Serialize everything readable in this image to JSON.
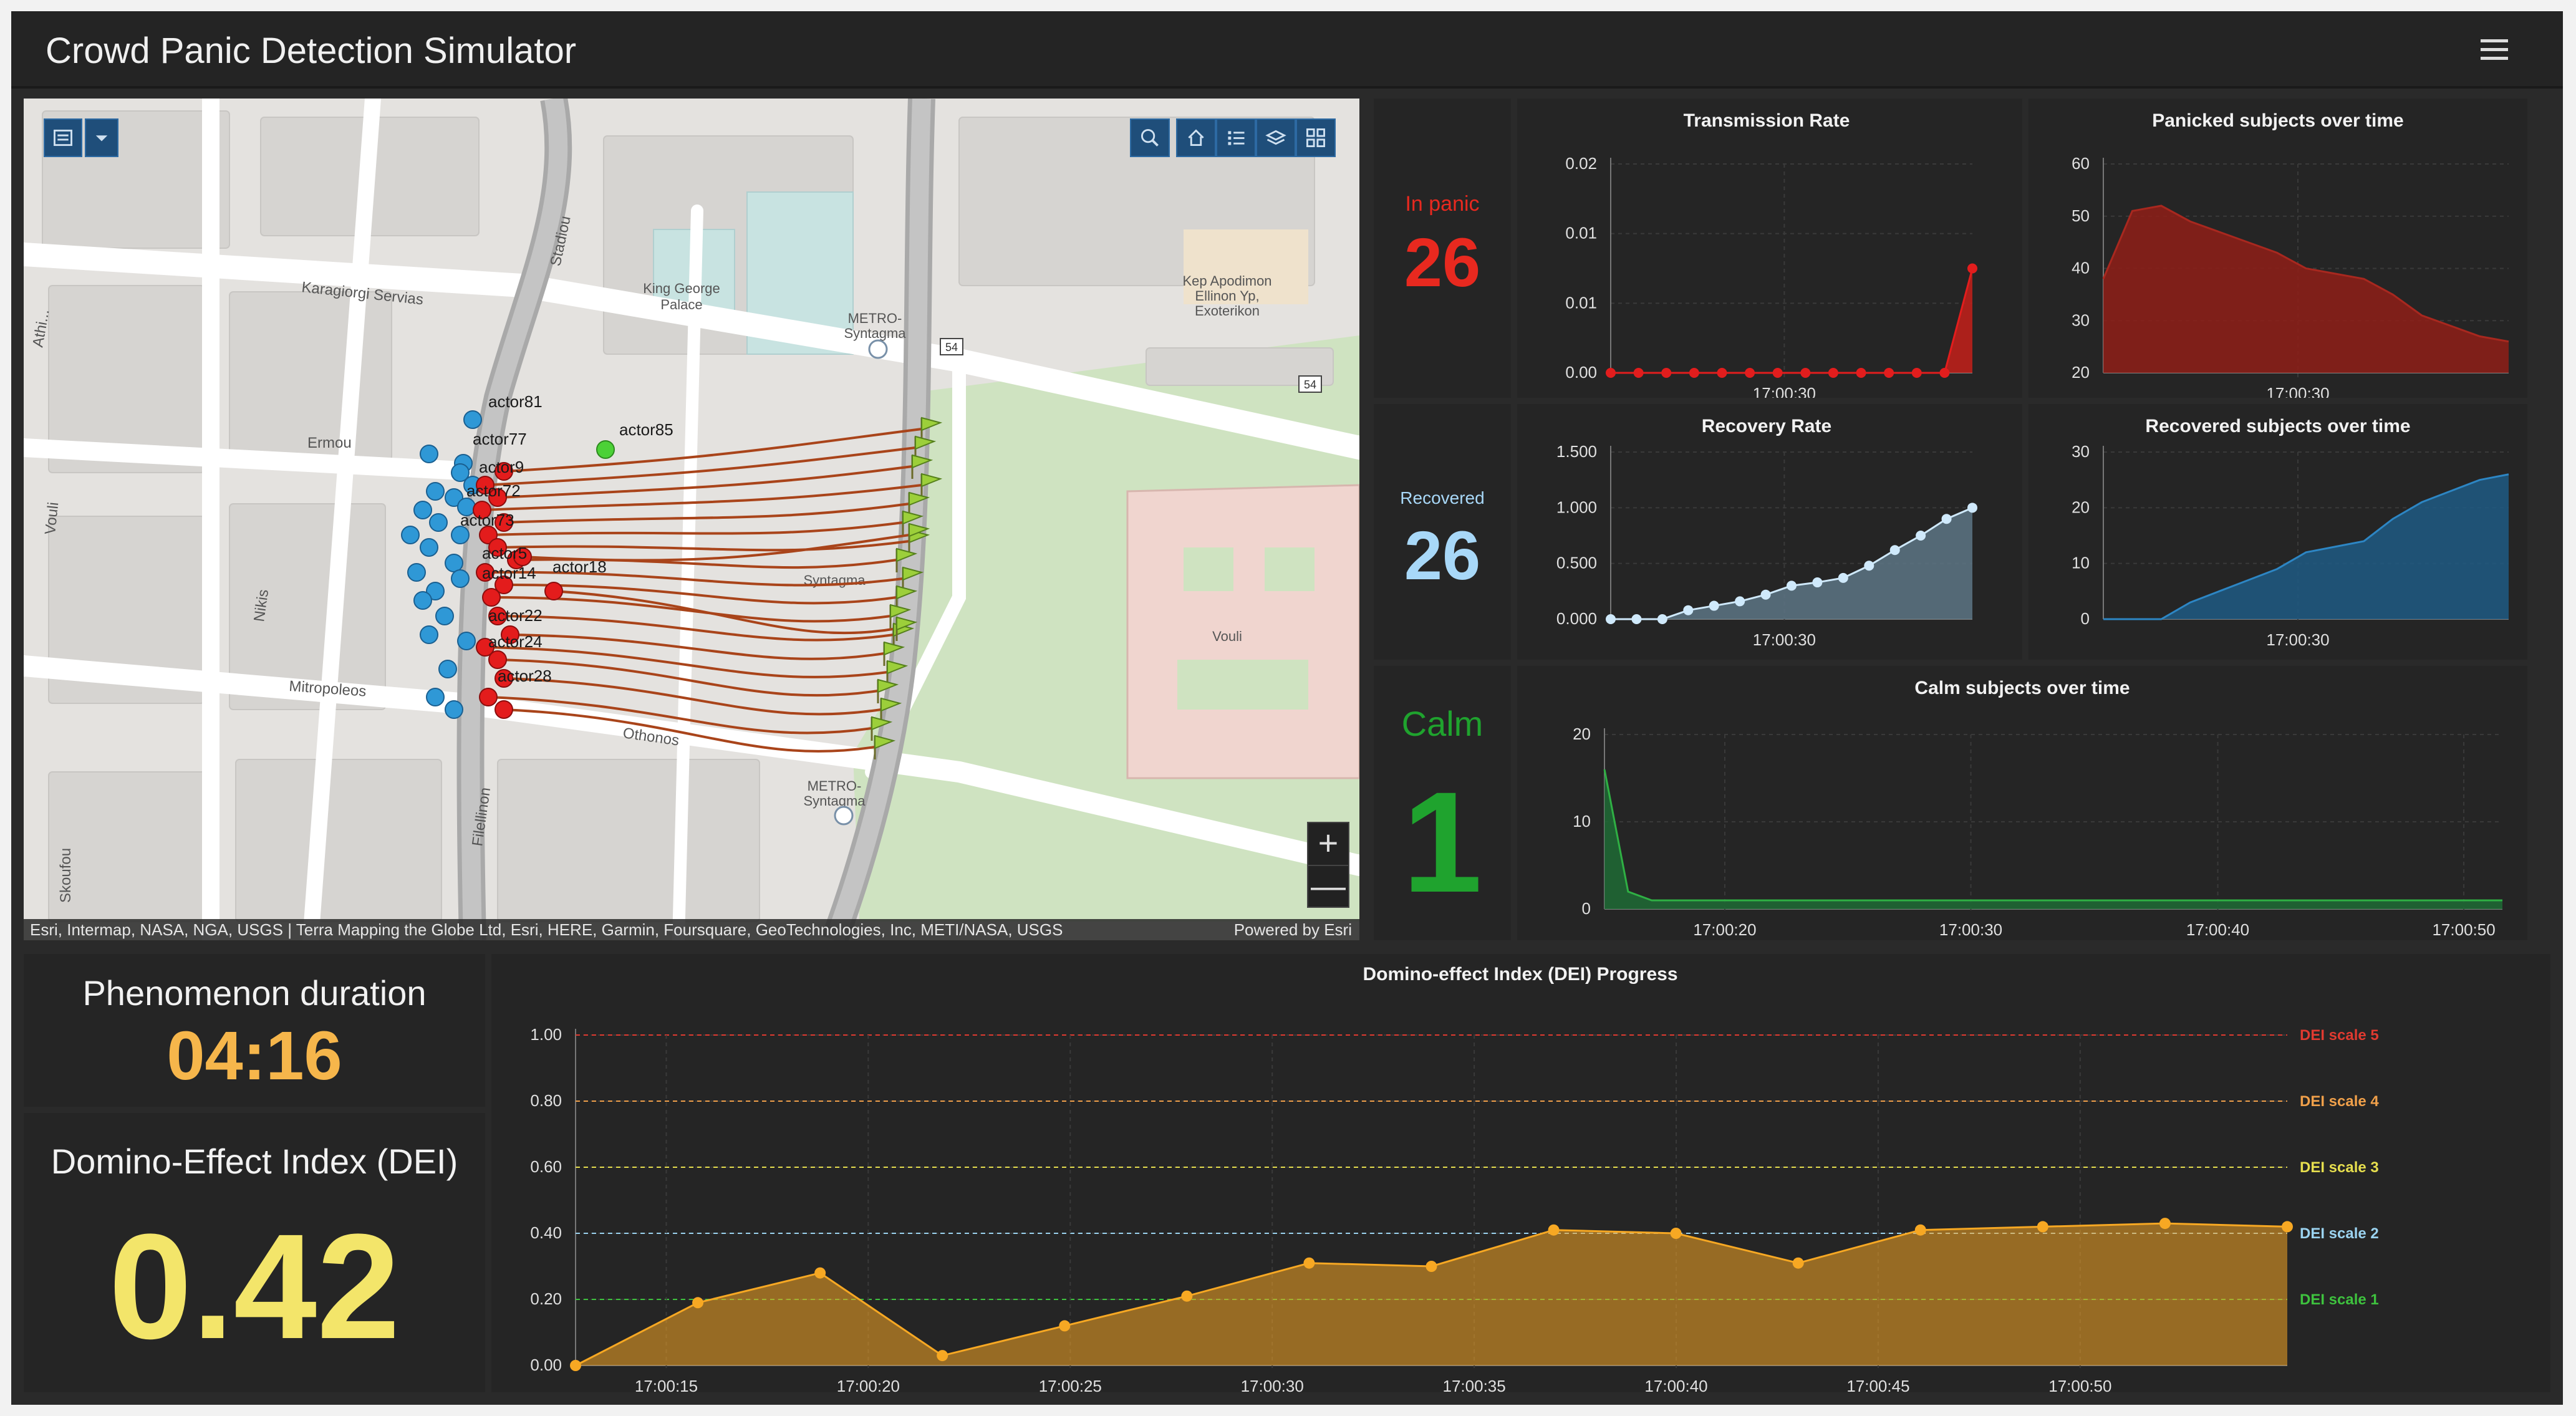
{
  "app": {
    "title": "Crowd Panic Detection Simulator"
  },
  "map": {
    "street_labels": [
      "Stadiou",
      "Karagiorgi Servias",
      "Ermou",
      "Vouli",
      "Nikis",
      "Mitropoleos",
      "Othonos",
      "Filellinon",
      "Skoufou",
      "Athi..."
    ],
    "place_labels": [
      "King George",
      "Palace",
      "METRO-",
      "Syntagma",
      "Kep Apodimon",
      "Ellinon Yp,",
      "Exoterikon",
      "Vouli",
      "54"
    ],
    "actor_labels": [
      "actor81",
      "actor77",
      "actor9",
      "actor72",
      "actor73",
      "actor5",
      "actor18",
      "actor14",
      "actor22",
      "actor24",
      "actor28",
      "actor85"
    ],
    "attribution": "Esri, Intermap, NASA, NGA, USGS | Terra Mapping the Globe Ltd, Esri, HERE, Garmin, Foursquare, GeoTechnologies, Inc, METI/NASA, USGS",
    "powered_by": "Powered by Esri",
    "zoom_in": "+",
    "zoom_out": "—",
    "colors": {
      "panic": "#e31c1c",
      "calm": "#2f98d6",
      "new": "#4cd137",
      "path": "#a9441a"
    }
  },
  "metrics": {
    "in_panic": {
      "label": "In panic",
      "value": "26",
      "color": "#e8291f"
    },
    "recovered": {
      "label": "Recovered",
      "value": "26",
      "color": "#a8d8f8"
    },
    "calm": {
      "label": "Calm",
      "value": "1",
      "color": "#1fa32e"
    },
    "phenomenon_duration": {
      "label": "Phenomenon duration",
      "value": "04:16",
      "color": "#f6b64b"
    },
    "dei": {
      "label": "Domino-Effect Index (DEI)",
      "value": "0.42",
      "color": "#f3e56a"
    }
  },
  "chart_data": [
    {
      "id": "transmission",
      "type": "area",
      "title": "Transmission Rate",
      "y_ticks": [
        "0.02",
        "0.01",
        "0.01",
        "0.00"
      ],
      "ylim": [
        0,
        0.02
      ],
      "x_ticks": [
        "17:00:30"
      ],
      "values": [
        0,
        0,
        0,
        0,
        0,
        0,
        0,
        0,
        0,
        0,
        0,
        0,
        0,
        0.01
      ],
      "color": "#c4201a"
    },
    {
      "id": "panicked",
      "type": "area",
      "title": "Panicked subjects over time",
      "y_ticks": [
        "60",
        "50",
        "40",
        "30",
        "20"
      ],
      "ylim": [
        20,
        60
      ],
      "x_ticks": [
        "17:00:30"
      ],
      "values": [
        38,
        51,
        52,
        49,
        47,
        45,
        43,
        40,
        39,
        38,
        35,
        31,
        29,
        27,
        26
      ],
      "color": "#8f1f17"
    },
    {
      "id": "recovery",
      "type": "area",
      "title": "Recovery Rate",
      "y_ticks": [
        "1.500",
        "1.000",
        "0.500",
        "0.000"
      ],
      "ylim": [
        0,
        1.5
      ],
      "x_ticks": [
        "17:00:30"
      ],
      "values": [
        0,
        0,
        0,
        0.08,
        0.12,
        0.16,
        0.22,
        0.3,
        0.33,
        0.37,
        0.48,
        0.62,
        0.75,
        0.9,
        1.0
      ],
      "color": "#5d7585"
    },
    {
      "id": "recovered_over_time",
      "type": "area",
      "title": "Recovered subjects over time",
      "y_ticks": [
        "30",
        "20",
        "10",
        "0"
      ],
      "ylim": [
        0,
        30
      ],
      "x_ticks": [
        "17:00:30"
      ],
      "values": [
        0,
        0,
        0,
        3,
        5,
        7,
        9,
        12,
        13,
        14,
        18,
        21,
        23,
        25,
        26
      ],
      "color": "#1f5b84"
    },
    {
      "id": "calm_over_time",
      "type": "area",
      "title": "Calm subjects over time",
      "y_ticks": [
        "20",
        "10",
        "0"
      ],
      "ylim": [
        0,
        20
      ],
      "x_ticks": [
        "17:00:20",
        "17:00:30",
        "17:00:40",
        "17:00:50"
      ],
      "values": [
        16,
        2,
        1,
        1,
        1,
        1,
        1,
        1,
        1,
        1,
        1,
        1,
        1,
        1,
        1,
        1,
        1,
        1,
        1,
        1,
        1,
        1,
        1,
        1,
        1,
        1,
        1,
        1,
        1,
        1,
        1,
        1,
        1,
        1,
        1,
        1,
        1,
        1,
        1
      ],
      "color": "#1f6b35"
    },
    {
      "id": "dei_progress",
      "type": "area",
      "title": "Domino-effect Index (DEI) Progress",
      "y_ticks": [
        "1.00",
        "0.80",
        "0.60",
        "0.40",
        "0.20",
        "0.00"
      ],
      "ylim": [
        0,
        1
      ],
      "x_ticks": [
        "17:00:15",
        "17:00:20",
        "17:00:25",
        "17:00:30",
        "17:00:35",
        "17:00:40",
        "17:00:45",
        "17:00:50"
      ],
      "values": [
        0.0,
        0.19,
        0.28,
        0.03,
        0.12,
        0.21,
        0.31,
        0.3,
        0.41,
        0.4,
        0.31,
        0.41,
        0.42,
        0.43,
        0.42
      ],
      "color": "#f5a524",
      "thresholds": [
        {
          "label": "DEI scale 5",
          "value": 1.0,
          "color": "#e03a30"
        },
        {
          "label": "DEI scale 4",
          "value": 0.8,
          "color": "#f0a04a"
        },
        {
          "label": "DEI scale 3",
          "value": 0.6,
          "color": "#e6de4e"
        },
        {
          "label": "DEI scale 2",
          "value": 0.4,
          "color": "#9bd3f0"
        },
        {
          "label": "DEI scale 1",
          "value": 0.2,
          "color": "#3ec23e"
        }
      ]
    }
  ]
}
